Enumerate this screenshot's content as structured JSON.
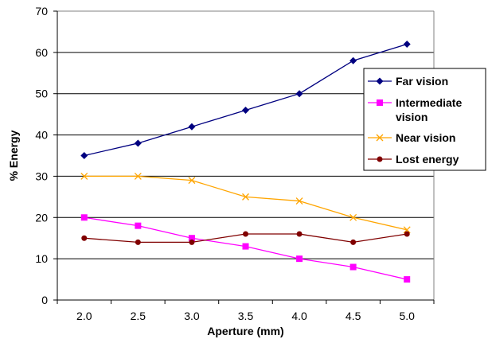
{
  "chart_data": {
    "type": "line",
    "title": "",
    "xlabel": "Aperture (mm)",
    "ylabel": "% Energy",
    "categories": [
      "2.0",
      "2.5",
      "3.0",
      "3.5",
      "4.0",
      "4.5",
      "5.0"
    ],
    "ylim": [
      0,
      70
    ],
    "yticks": [
      0,
      10,
      20,
      30,
      40,
      50,
      60,
      70
    ],
    "grid": "horizontal",
    "legend": "right",
    "series": [
      {
        "name": "Far vision",
        "legend_lines": [
          "Far vision"
        ],
        "color": "#000080",
        "marker": "diamond",
        "values": [
          35,
          38,
          42,
          46,
          50,
          58,
          62
        ]
      },
      {
        "name": "Intermediate vision",
        "legend_lines": [
          "Intermediate",
          "vision"
        ],
        "color": "#ff00ff",
        "marker": "square",
        "values": [
          20,
          18,
          15,
          13,
          10,
          8,
          5
        ]
      },
      {
        "name": "Near vision",
        "legend_lines": [
          "Near vision"
        ],
        "color": "#ffa500",
        "marker": "x",
        "values": [
          30,
          30,
          29,
          25,
          24,
          20,
          17
        ]
      },
      {
        "name": "Lost energy",
        "legend_lines": [
          "Lost energy"
        ],
        "color": "#800000",
        "marker": "circle",
        "values": [
          15,
          14,
          14,
          16,
          16,
          14,
          16
        ]
      }
    ]
  }
}
